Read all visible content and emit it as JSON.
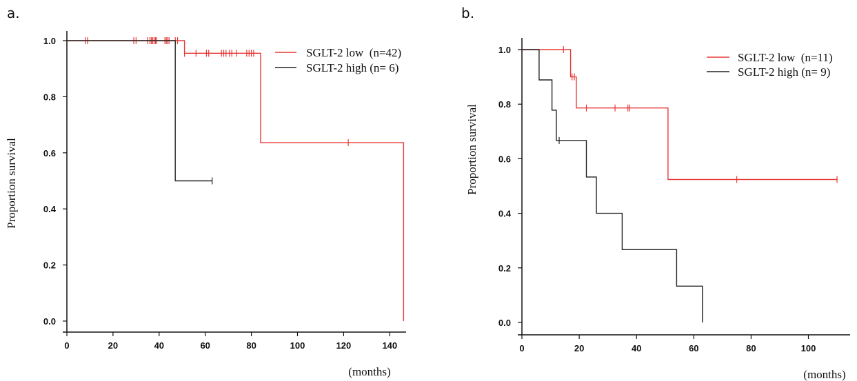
{
  "chart_data": [
    {
      "panel": "a.",
      "type": "line",
      "xlabel": "(months)",
      "ylabel": "Proportion survival",
      "xlim": [
        0,
        150
      ],
      "ylim": [
        0,
        1.0
      ],
      "xticks": [
        0,
        20,
        40,
        60,
        80,
        100,
        120,
        140
      ],
      "yticks": [
        "0.0",
        "0.2",
        "0.4",
        "0.6",
        "0.8",
        "1.0"
      ],
      "legend_position": "top-right",
      "series": [
        {
          "name": "SGLT-2 low  (n=42)",
          "color": "#e53935",
          "steps": [
            [
              0,
              1.0
            ],
            [
              51,
              1.0
            ],
            [
              51,
              0.955
            ],
            [
              84,
              0.955
            ],
            [
              84,
              0.636
            ],
            [
              146,
              0.636
            ],
            [
              146,
              0.0
            ]
          ],
          "censors": [
            [
              8,
              1.0
            ],
            [
              9,
              1.0
            ],
            [
              29,
              1.0
            ],
            [
              30,
              1.0
            ],
            [
              35,
              1.0
            ],
            [
              36,
              1.0
            ],
            [
              36.6,
              1.0
            ],
            [
              37.2,
              1.0
            ],
            [
              37.8,
              1.0
            ],
            [
              38.4,
              1.0
            ],
            [
              39,
              1.0
            ],
            [
              42.5,
              1.0
            ],
            [
              43.1,
              1.0
            ],
            [
              43.7,
              1.0
            ],
            [
              44.3,
              1.0
            ],
            [
              47,
              1.0
            ],
            [
              48,
              1.0
            ],
            [
              51,
              0.955
            ],
            [
              56,
              0.955
            ],
            [
              60.5,
              0.955
            ],
            [
              61.5,
              0.955
            ],
            [
              67,
              0.955
            ],
            [
              68,
              0.955
            ],
            [
              69,
              0.955
            ],
            [
              70.5,
              0.955
            ],
            [
              71.5,
              0.955
            ],
            [
              73.5,
              0.955
            ],
            [
              78,
              0.955
            ],
            [
              79,
              0.955
            ],
            [
              80,
              0.955
            ],
            [
              81,
              0.955
            ],
            [
              122,
              0.636
            ]
          ]
        },
        {
          "name": "SGLT-2 high (n= 6)",
          "color": "#222222",
          "steps": [
            [
              0,
              1.0
            ],
            [
              47,
              1.0
            ],
            [
              47,
              0.5
            ],
            [
              63,
              0.5
            ]
          ],
          "censors": [
            [
              63,
              0.5
            ]
          ]
        }
      ]
    },
    {
      "panel": "b.",
      "type": "line",
      "xlabel": "(months)",
      "ylabel": "Proportion survival",
      "xlim": [
        0,
        110
      ],
      "ylim": [
        0,
        1.0
      ],
      "xticks": [
        0,
        20,
        40,
        60,
        80,
        100
      ],
      "yticks": [
        "0.0",
        "0.2",
        "0.4",
        "0.6",
        "0.8",
        "1.0"
      ],
      "legend_position": "top-right",
      "series": [
        {
          "name": "SGLT-2 low  (n=11)",
          "color": "#e53935",
          "steps": [
            [
              0,
              1.0
            ],
            [
              17,
              1.0
            ],
            [
              17,
              0.9
            ],
            [
              19,
              0.9
            ],
            [
              19,
              0.786
            ],
            [
              51,
              0.786
            ],
            [
              51,
              0.524
            ],
            [
              110,
              0.524
            ]
          ],
          "censors": [
            [
              14.5,
              1.0
            ],
            [
              17.5,
              0.9
            ],
            [
              18.3,
              0.9
            ],
            [
              22.5,
              0.786
            ],
            [
              32.5,
              0.786
            ],
            [
              37,
              0.786
            ],
            [
              37.6,
              0.786
            ],
            [
              75,
              0.524
            ],
            [
              110,
              0.524
            ]
          ]
        },
        {
          "name": "SGLT-2 high (n= 9)",
          "color": "#222222",
          "steps": [
            [
              0,
              1.0
            ],
            [
              6,
              1.0
            ],
            [
              6,
              0.889
            ],
            [
              10.5,
              0.889
            ],
            [
              10.5,
              0.778
            ],
            [
              12,
              0.778
            ],
            [
              12,
              0.667
            ],
            [
              22.5,
              0.667
            ],
            [
              22.5,
              0.533
            ],
            [
              26,
              0.533
            ],
            [
              26,
              0.4
            ],
            [
              35,
              0.4
            ],
            [
              35,
              0.267
            ],
            [
              54,
              0.267
            ],
            [
              54,
              0.133
            ],
            [
              63,
              0.133
            ],
            [
              63,
              0.0
            ]
          ],
          "censors": [
            [
              13,
              0.667
            ]
          ]
        }
      ]
    }
  ]
}
